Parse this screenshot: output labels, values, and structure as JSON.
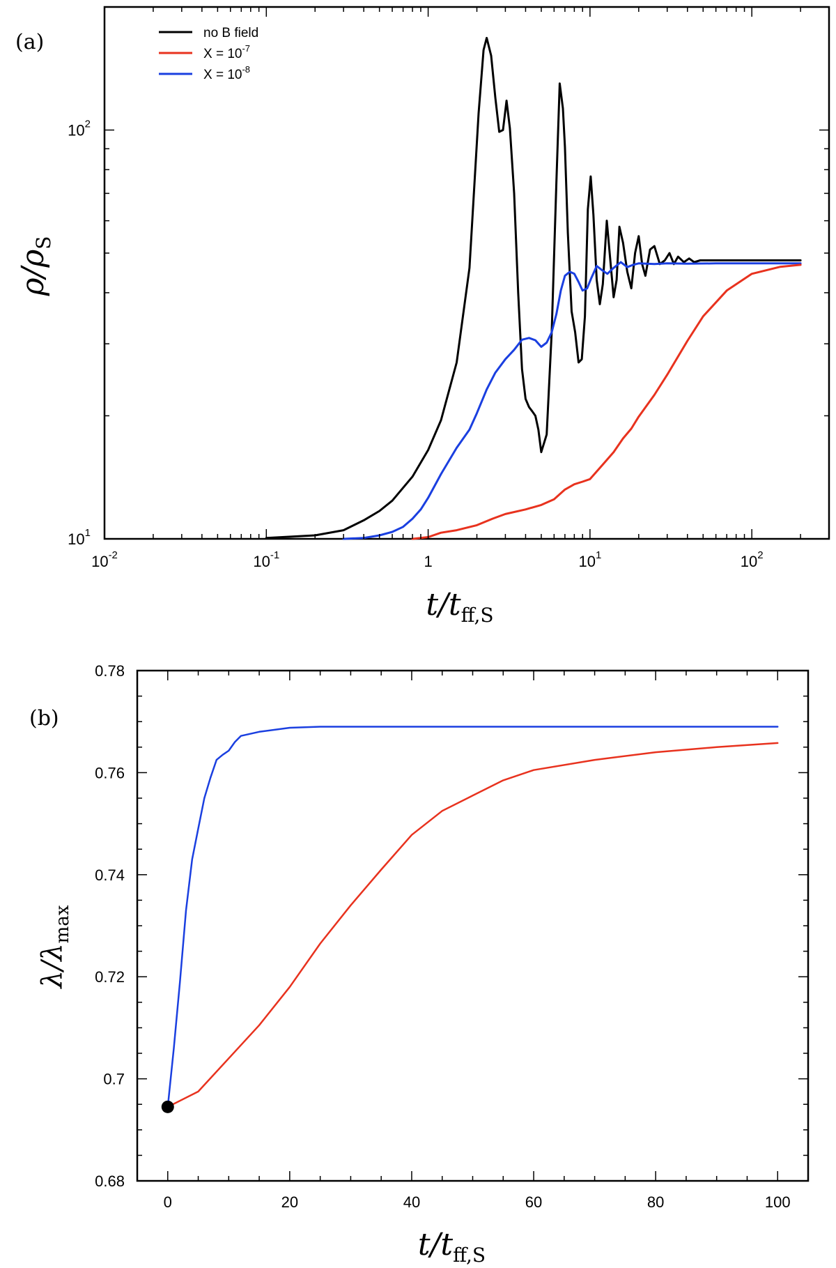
{
  "chart_data": [
    {
      "type": "line",
      "panel_label": "(a)",
      "x_scale": "log",
      "y_scale": "log",
      "xlim": [
        0.01,
        300
      ],
      "ylim": [
        10,
        200
      ],
      "xlabel": "t/t_ff,S",
      "ylabel": "ρ/ρS",
      "xlabel_parts": {
        "a": "t/t",
        "b": "ff,S"
      },
      "ylabel_parts": {
        "a": "ρ/ρ",
        "b": "S"
      },
      "x_ticks": [
        {
          "value": 0.01,
          "label": "10",
          "exp": "-2"
        },
        {
          "value": 0.1,
          "label": "10",
          "exp": "-1"
        },
        {
          "value": 1,
          "label": "1",
          "exp": ""
        },
        {
          "value": 10,
          "label": "10",
          "exp": "1"
        },
        {
          "value": 100,
          "label": "10",
          "exp": "2"
        }
      ],
      "y_ticks": [
        {
          "value": 10,
          "label": "10",
          "exp": "1"
        },
        {
          "value": 100,
          "label": "10",
          "exp": "2"
        }
      ],
      "legend": {
        "placement": "top-left",
        "entries": [
          {
            "label": "no B field",
            "label_exp": "",
            "color": "#000000"
          },
          {
            "label": "X = 10",
            "label_exp": "-7",
            "color": "#e8321e"
          },
          {
            "label": "X = 10",
            "label_exp": "-8",
            "color": "#1a3fe0"
          }
        ]
      },
      "series": [
        {
          "name": "no B field",
          "color": "#000000",
          "x": [
            0.1,
            0.2,
            0.3,
            0.4,
            0.5,
            0.6,
            0.8,
            1.0,
            1.2,
            1.5,
            1.8,
            2.05,
            2.2,
            2.3,
            2.45,
            2.6,
            2.75,
            2.9,
            3.05,
            3.2,
            3.4,
            3.6,
            3.8,
            4.0,
            4.2,
            4.4,
            4.6,
            4.8,
            5.0,
            5.4,
            5.8,
            6.2,
            6.5,
            6.8,
            7.0,
            7.3,
            7.7,
            8.1,
            8.5,
            8.9,
            9.3,
            9.7,
            10.1,
            10.5,
            11.0,
            11.5,
            12.0,
            12.7,
            13.3,
            14.0,
            14.6,
            15.2,
            16.0,
            17.0,
            18.0,
            19.0,
            20.0,
            21.0,
            22.0,
            23.5,
            25.0,
            27.0,
            29.0,
            31.0,
            33.0,
            35.0,
            38.0,
            41.0,
            44.0,
            48.0,
            55.0,
            70.0,
            100.0,
            200.0
          ],
          "y": [
            10.05,
            10.2,
            10.5,
            11.1,
            11.7,
            12.4,
            14.2,
            16.5,
            19.5,
            27,
            46,
            110,
            157,
            168,
            152,
            120,
            99,
            100,
            118,
            101,
            70,
            40,
            26,
            22,
            21,
            20.5,
            20,
            18.5,
            16.3,
            18,
            32,
            75,
            130,
            113,
            91,
            56,
            36,
            32,
            27,
            27.5,
            35,
            64,
            77,
            62,
            43,
            37.5,
            42,
            60,
            49,
            39,
            43,
            58,
            53,
            45,
            41,
            50,
            55,
            47,
            44,
            51,
            52,
            47,
            48,
            50,
            47,
            49,
            47.5,
            48.5,
            47.5,
            48,
            48,
            48,
            48,
            48
          ]
        },
        {
          "name": "X = 10^-8",
          "color": "#1a3fe0",
          "x": [
            0.3,
            0.4,
            0.5,
            0.6,
            0.7,
            0.8,
            0.9,
            1.0,
            1.2,
            1.5,
            1.8,
            2.0,
            2.3,
            2.6,
            3.0,
            3.4,
            3.8,
            4.2,
            4.6,
            5.0,
            5.4,
            5.8,
            6.2,
            6.6,
            7.0,
            7.5,
            8.0,
            8.5,
            9.0,
            9.6,
            10.2,
            11.0,
            11.8,
            12.8,
            14.0,
            15.5,
            17.0,
            18.5,
            20.0,
            25.0,
            30.0,
            40.0,
            60.0,
            100.0,
            200.0
          ],
          "y": [
            10,
            10.05,
            10.2,
            10.4,
            10.7,
            11.2,
            11.8,
            12.6,
            14.4,
            16.7,
            18.5,
            20.3,
            23.2,
            25.5,
            27.5,
            29,
            30.7,
            31,
            30.6,
            29.5,
            30.2,
            32,
            35.5,
            40.5,
            44,
            45,
            44.5,
            42.5,
            40.5,
            41,
            43.5,
            46.5,
            45.5,
            44.5,
            46,
            47.5,
            46.2,
            46.8,
            47.2,
            47,
            47.2,
            47.1,
            47.2,
            47.2,
            47.2
          ]
        },
        {
          "name": "X = 10^-7",
          "color": "#e8321e",
          "x": [
            0.8,
            1.0,
            1.2,
            1.5,
            2.0,
            2.5,
            3.0,
            4.0,
            5.0,
            6.0,
            7.0,
            8.0,
            9.0,
            10.0,
            12.0,
            14.0,
            16.0,
            18.0,
            20.0,
            25.0,
            30.0,
            40.0,
            50.0,
            70.0,
            100.0,
            150.0,
            200.0
          ],
          "y": [
            10,
            10.1,
            10.35,
            10.5,
            10.8,
            11.2,
            11.5,
            11.8,
            12.1,
            12.5,
            13.2,
            13.6,
            13.8,
            14.0,
            15.2,
            16.3,
            17.6,
            18.6,
            19.9,
            22.5,
            25.2,
            30.5,
            35,
            40.5,
            44.5,
            46.3,
            46.8
          ]
        }
      ]
    },
    {
      "type": "line",
      "panel_label": "(b)",
      "x_scale": "linear",
      "y_scale": "linear",
      "xlim": [
        -5,
        105
      ],
      "ylim": [
        0.68,
        0.78
      ],
      "xlabel": "t/t_ff,S",
      "ylabel": "λ/λmax",
      "xlabel_parts": {
        "a": "t/t",
        "b": "ff,S"
      },
      "ylabel_parts": {
        "a": "λ/λ",
        "b": "max"
      },
      "x_ticks": [
        {
          "value": 0,
          "label": "0"
        },
        {
          "value": 20,
          "label": "20"
        },
        {
          "value": 40,
          "label": "40"
        },
        {
          "value": 60,
          "label": "60"
        },
        {
          "value": 80,
          "label": "80"
        },
        {
          "value": 100,
          "label": "100"
        }
      ],
      "y_ticks": [
        {
          "value": 0.68,
          "label": "0.68"
        },
        {
          "value": 0.7,
          "label": "0.7"
        },
        {
          "value": 0.72,
          "label": "0.72"
        },
        {
          "value": 0.74,
          "label": "0.74"
        },
        {
          "value": 0.76,
          "label": "0.76"
        },
        {
          "value": 0.78,
          "label": "0.78"
        }
      ],
      "marker": {
        "x": 0,
        "y": 0.6945,
        "color": "#000000"
      },
      "series": [
        {
          "name": "X = 10^-8",
          "color": "#1a3fe0",
          "x": [
            0,
            1,
            2,
            3,
            4,
            5,
            6,
            7,
            8,
            9,
            10,
            11,
            12,
            15,
            20,
            25,
            30,
            40,
            60,
            80,
            100
          ],
          "y": [
            0.6945,
            0.706,
            0.719,
            0.733,
            0.743,
            0.749,
            0.755,
            0.759,
            0.7625,
            0.7635,
            0.7643,
            0.766,
            0.7672,
            0.768,
            0.7688,
            0.769,
            0.769,
            0.769,
            0.769,
            0.769,
            0.769
          ]
        },
        {
          "name": "X = 10^-7",
          "color": "#e8321e",
          "x": [
            0,
            5,
            10,
            15,
            20,
            25,
            30,
            35,
            40,
            45,
            50,
            55,
            60,
            70,
            80,
            90,
            100
          ],
          "y": [
            0.6945,
            0.6975,
            0.704,
            0.7105,
            0.718,
            0.7265,
            0.734,
            0.741,
            0.7478,
            0.7525,
            0.7555,
            0.7585,
            0.7605,
            0.7625,
            0.764,
            0.765,
            0.7658
          ]
        }
      ]
    }
  ]
}
